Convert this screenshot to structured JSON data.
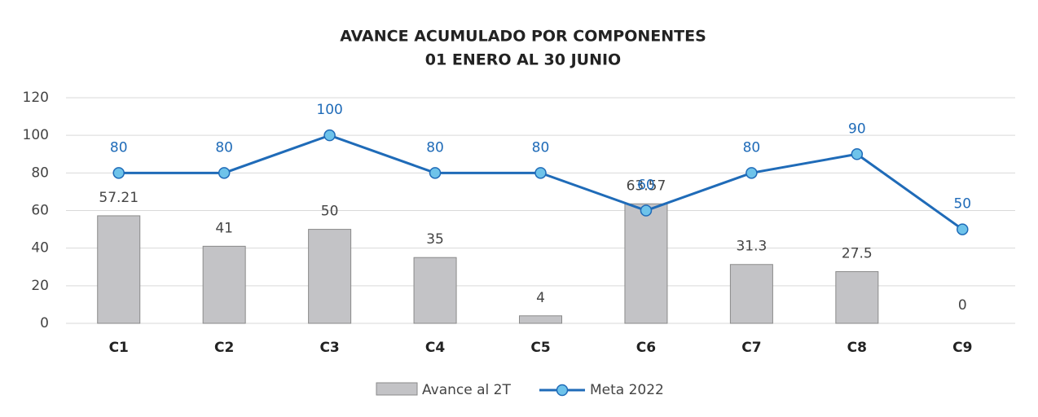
{
  "chart_data": {
    "type": "bar",
    "title": "AVANCE ACUMULADO POR COMPONENTES",
    "subtitle": "01 ENERO AL 30 JUNIO",
    "categories": [
      "C1",
      "C2",
      "C3",
      "C4",
      "C5",
      "C6",
      "C7",
      "C8",
      "C9"
    ],
    "series": [
      {
        "name": "Avance al 2T",
        "type": "bar",
        "color": "#c3c3c6",
        "values": [
          57.21,
          41,
          50,
          35,
          4,
          63.57,
          31.3,
          27.5,
          0
        ]
      },
      {
        "name": "Meta 2022",
        "type": "line",
        "color": "#1f6bb8",
        "values": [
          80,
          80,
          100,
          80,
          80,
          60,
          80,
          90,
          50
        ]
      }
    ],
    "ylim": [
      0,
      120
    ],
    "yticks": [
      0,
      20,
      40,
      60,
      80,
      100,
      120
    ],
    "grid": true,
    "legend": "bottom"
  }
}
